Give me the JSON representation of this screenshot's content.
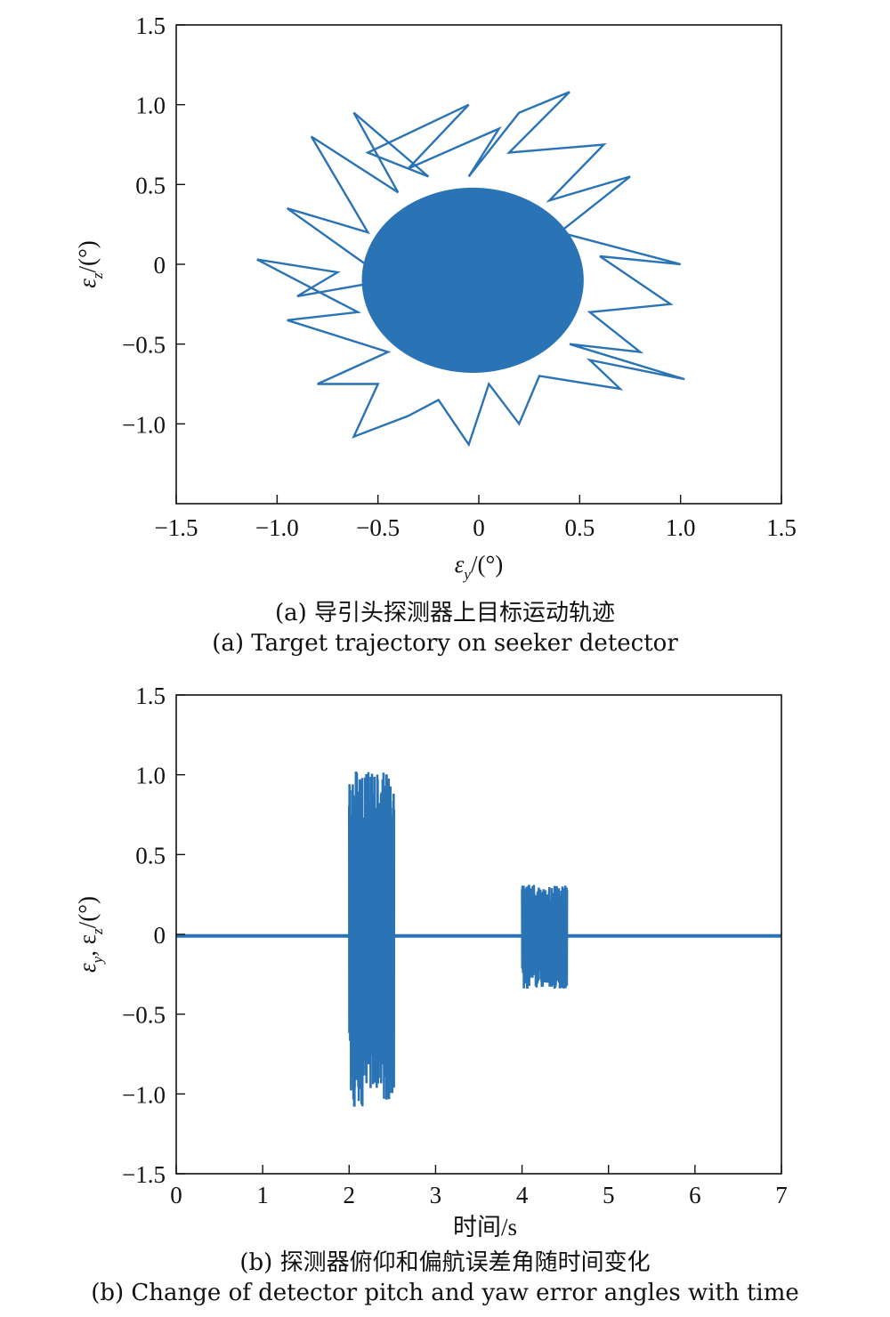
{
  "chart_data": [
    {
      "type": "line",
      "xlabel_symbol": "ε",
      "xlabel_sub": "y",
      "xlabel_unit": "/(°)",
      "ylabel_symbol": "ε",
      "ylabel_sub": "z",
      "ylabel_unit": "/(°)",
      "xlim": [
        -1.5,
        1.5
      ],
      "ylim": [
        -1.5,
        1.5
      ],
      "xticks": [
        "−1.5",
        "−1.0",
        "−0.5",
        "0",
        "0.5",
        "1.0",
        "1.5"
      ],
      "yticks": [
        "1.5",
        "1.0",
        "0.5",
        "0",
        "−0.5",
        "−1.0"
      ],
      "line_color": "#2a73b5",
      "caption_cn": "(a) 导引头探测器上目标运动轨迹",
      "caption_en": "(a) Target trajectory on seeker detector",
      "series": [
        {
          "x": [
            -1.1,
            -0.7,
            -0.9,
            -0.45,
            -0.95,
            -0.55,
            -0.83,
            -0.4,
            -0.62,
            -0.25,
            -0.55,
            -0.05,
            -0.35,
            0.1,
            -0.05,
            0.2,
            0.45,
            0.15,
            0.62,
            0.35,
            0.75,
            0.4,
            1.0,
            0.6,
            0.95,
            0.55,
            0.8,
            0.45,
            1.02,
            0.55,
            0.7,
            0.3,
            0.2,
            0.05,
            -0.05,
            -0.2,
            -0.35,
            -0.62,
            -0.5,
            -0.8,
            -0.45,
            -0.95,
            -0.6,
            -1.1
          ],
          "y": [
            0.03,
            -0.05,
            -0.2,
            -0.1,
            0.35,
            0.2,
            0.8,
            0.45,
            0.95,
            0.55,
            0.7,
            1.0,
            0.6,
            0.85,
            0.55,
            0.95,
            1.08,
            0.7,
            0.75,
            0.4,
            0.55,
            0.2,
            0.0,
            0.05,
            -0.25,
            -0.3,
            -0.55,
            -0.5,
            -0.72,
            -0.6,
            -0.78,
            -0.7,
            -1.0,
            -0.75,
            -1.13,
            -0.85,
            -0.95,
            -1.08,
            -0.75,
            -0.75,
            -0.55,
            -0.35,
            -0.3,
            0.03
          ]
        }
      ]
    },
    {
      "type": "line",
      "xlabel": "时间/s",
      "ylabel_parts": [
        "ε",
        "y",
        ", ε",
        "z",
        "/(°)"
      ],
      "xlim": [
        0,
        7
      ],
      "ylim": [
        -1.5,
        1.5
      ],
      "xticks": [
        "0",
        "1",
        "2",
        "3",
        "4",
        "5",
        "6",
        "7"
      ],
      "yticks": [
        "1.5",
        "1.0",
        "0.5",
        "0",
        "−0.5",
        "−1.0",
        "−1.5"
      ],
      "line_color": "#2a73b5",
      "caption_cn": "(b) 探测器俯仰和偏航误差角随时间变化",
      "caption_en": "(b) Change of detector pitch and yaw error angles with time",
      "bursts": [
        {
          "t_start": 2.0,
          "t_end": 2.52,
          "max": 1.02,
          "min": -1.08
        },
        {
          "t_start": 4.0,
          "t_end": 4.52,
          "max": 0.31,
          "min": -0.34
        }
      ],
      "baseline": -0.01
    }
  ]
}
